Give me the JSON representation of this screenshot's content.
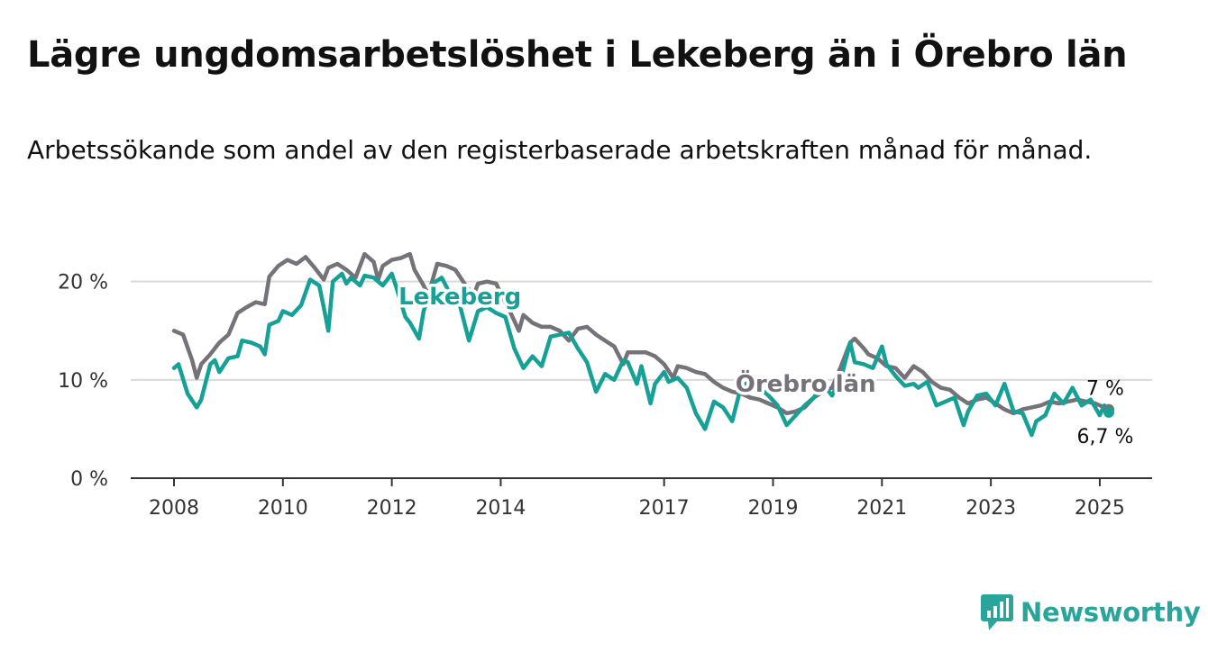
{
  "title": "Lägre ungdomsarbetslöshet i Lekeberg än i Örebro län",
  "subtitle": "Arbetssökande som andel av den registerbaserade arbetskraften månad för månad.",
  "brand": {
    "name": "Newsworthy",
    "icon": "newsworthy-logo-icon",
    "color": "#2aa59b"
  },
  "chart_data": {
    "type": "line",
    "title": "Lägre ungdomsarbetslöshet i Lekeberg än i Örebro län",
    "subtitle": "Arbetssökande som andel av den registerbaserade arbetskraften månad för månad.",
    "xlabel": "",
    "ylabel": "",
    "x_ticks": [
      "2008",
      "2010",
      "2012",
      "2014",
      "2017",
      "2019",
      "2021",
      "2023",
      "2025"
    ],
    "x_range": [
      "2008-01",
      "2025-03"
    ],
    "y_ticks": [
      {
        "value": 0,
        "label": "0 %"
      },
      {
        "value": 10,
        "label": "10 %"
      },
      {
        "value": 20,
        "label": "20 %"
      }
    ],
    "ylim": [
      0,
      24
    ],
    "grid": true,
    "legend": "inline labels",
    "series": [
      {
        "name": "Örebro län",
        "color": "#767279",
        "end_label": "7 %",
        "points": [
          [
            "2008-01",
            15.0
          ],
          [
            "2008-03",
            14.6
          ],
          [
            "2008-05",
            12.0
          ],
          [
            "2008-06",
            10.2
          ],
          [
            "2008-07",
            11.6
          ],
          [
            "2008-09",
            12.6
          ],
          [
            "2008-11",
            13.8
          ],
          [
            "2009-01",
            14.6
          ],
          [
            "2009-03",
            16.8
          ],
          [
            "2009-05",
            17.4
          ],
          [
            "2009-07",
            17.9
          ],
          [
            "2009-09",
            17.7
          ],
          [
            "2009-10",
            20.5
          ],
          [
            "2009-12",
            21.6
          ],
          [
            "2010-02",
            22.2
          ],
          [
            "2010-04",
            21.8
          ],
          [
            "2010-06",
            22.5
          ],
          [
            "2010-08",
            21.4
          ],
          [
            "2010-10",
            20.2
          ],
          [
            "2010-11",
            21.4
          ],
          [
            "2011-01",
            21.8
          ],
          [
            "2011-03",
            21.2
          ],
          [
            "2011-05",
            20.4
          ],
          [
            "2011-07",
            22.8
          ],
          [
            "2011-09",
            22.0
          ],
          [
            "2011-10",
            20.2
          ],
          [
            "2011-11",
            21.6
          ],
          [
            "2012-01",
            22.2
          ],
          [
            "2012-03",
            22.4
          ],
          [
            "2012-05",
            22.8
          ],
          [
            "2012-06",
            21.2
          ],
          [
            "2012-08",
            19.6
          ],
          [
            "2012-09",
            18.6
          ],
          [
            "2012-10",
            20.2
          ],
          [
            "2012-11",
            21.8
          ],
          [
            "2013-01",
            21.6
          ],
          [
            "2013-03",
            21.2
          ],
          [
            "2013-05",
            19.8
          ],
          [
            "2013-07",
            18.6
          ],
          [
            "2013-08",
            19.8
          ],
          [
            "2013-10",
            20.0
          ],
          [
            "2013-12",
            19.8
          ],
          [
            "2014-01",
            18.8
          ],
          [
            "2014-03",
            17.0
          ],
          [
            "2014-05",
            15.0
          ],
          [
            "2014-06",
            16.6
          ],
          [
            "2014-08",
            15.8
          ],
          [
            "2014-10",
            15.4
          ],
          [
            "2014-12",
            15.4
          ],
          [
            "2015-02",
            15.0
          ],
          [
            "2015-04",
            14.0
          ],
          [
            "2015-06",
            15.2
          ],
          [
            "2015-08",
            15.4
          ],
          [
            "2015-10",
            14.6
          ],
          [
            "2015-12",
            14.0
          ],
          [
            "2016-02",
            13.4
          ],
          [
            "2016-04",
            11.6
          ],
          [
            "2016-05",
            12.8
          ],
          [
            "2016-07",
            12.8
          ],
          [
            "2016-09",
            12.8
          ],
          [
            "2016-11",
            12.4
          ],
          [
            "2017-01",
            11.6
          ],
          [
            "2017-03",
            10.2
          ],
          [
            "2017-04",
            11.4
          ],
          [
            "2017-06",
            11.2
          ],
          [
            "2017-08",
            10.8
          ],
          [
            "2017-10",
            10.6
          ],
          [
            "2017-12",
            9.8
          ],
          [
            "2018-02",
            9.2
          ],
          [
            "2018-04",
            8.8
          ],
          [
            "2018-06",
            8.6
          ],
          [
            "2018-08",
            8.2
          ],
          [
            "2018-10",
            8.0
          ],
          [
            "2018-12",
            7.6
          ],
          [
            "2019-02",
            7.2
          ],
          [
            "2019-04",
            6.6
          ],
          [
            "2019-06",
            6.8
          ],
          [
            "2019-08",
            7.2
          ],
          [
            "2019-10",
            8.2
          ],
          [
            "2019-12",
            8.8
          ],
          [
            "2020-02",
            9.2
          ],
          [
            "2020-04",
            11.4
          ],
          [
            "2020-06",
            13.8
          ],
          [
            "2020-07",
            14.2
          ],
          [
            "2020-09",
            13.2
          ],
          [
            "2020-10",
            12.6
          ],
          [
            "2020-12",
            12.2
          ],
          [
            "2021-02",
            11.4
          ],
          [
            "2021-04",
            11.2
          ],
          [
            "2021-06",
            10.2
          ],
          [
            "2021-08",
            11.4
          ],
          [
            "2021-10",
            10.8
          ],
          [
            "2021-12",
            9.8
          ],
          [
            "2022-02",
            9.2
          ],
          [
            "2022-04",
            9.0
          ],
          [
            "2022-06",
            8.2
          ],
          [
            "2022-08",
            7.6
          ],
          [
            "2022-10",
            8.0
          ],
          [
            "2022-12",
            8.2
          ],
          [
            "2023-02",
            7.6
          ],
          [
            "2023-04",
            7.0
          ],
          [
            "2023-06",
            6.6
          ],
          [
            "2023-08",
            7.0
          ],
          [
            "2023-10",
            7.2
          ],
          [
            "2023-12",
            7.4
          ],
          [
            "2024-02",
            7.8
          ],
          [
            "2024-04",
            7.6
          ],
          [
            "2024-06",
            7.8
          ],
          [
            "2024-08",
            8.0
          ],
          [
            "2024-10",
            7.8
          ],
          [
            "2024-12",
            7.6
          ],
          [
            "2025-03",
            7.0
          ]
        ]
      },
      {
        "name": "Lekeberg",
        "color": "#16a096",
        "end_label": "6,7 %",
        "points": [
          [
            "2008-01",
            11.2
          ],
          [
            "2008-02",
            11.6
          ],
          [
            "2008-04",
            8.6
          ],
          [
            "2008-06",
            7.2
          ],
          [
            "2008-07",
            8.0
          ],
          [
            "2008-09",
            11.6
          ],
          [
            "2008-10",
            12.0
          ],
          [
            "2008-11",
            10.8
          ],
          [
            "2009-01",
            12.2
          ],
          [
            "2009-03",
            12.4
          ],
          [
            "2009-04",
            14.0
          ],
          [
            "2009-06",
            13.8
          ],
          [
            "2009-08",
            13.4
          ],
          [
            "2009-09",
            12.6
          ],
          [
            "2009-10",
            15.6
          ],
          [
            "2009-12",
            16.0
          ],
          [
            "2010-01",
            17.0
          ],
          [
            "2010-03",
            16.6
          ],
          [
            "2010-05",
            17.6
          ],
          [
            "2010-07",
            20.2
          ],
          [
            "2010-09",
            19.6
          ],
          [
            "2010-10",
            17.4
          ],
          [
            "2010-11",
            15.0
          ],
          [
            "2010-12",
            20.0
          ],
          [
            "2011-02",
            20.8
          ],
          [
            "2011-03",
            19.8
          ],
          [
            "2011-04",
            20.4
          ],
          [
            "2011-06",
            19.6
          ],
          [
            "2011-07",
            20.6
          ],
          [
            "2011-09",
            20.4
          ],
          [
            "2011-11",
            19.6
          ],
          [
            "2012-01",
            20.8
          ],
          [
            "2012-02",
            19.4
          ],
          [
            "2012-04",
            16.4
          ],
          [
            "2012-05",
            15.8
          ],
          [
            "2012-07",
            14.2
          ],
          [
            "2012-08",
            17.0
          ],
          [
            "2012-10",
            19.8
          ],
          [
            "2012-12",
            20.4
          ],
          [
            "2013-02",
            18.6
          ],
          [
            "2013-04",
            17.6
          ],
          [
            "2013-06",
            14.0
          ],
          [
            "2013-08",
            17.0
          ],
          [
            "2013-10",
            17.4
          ],
          [
            "2013-12",
            16.8
          ],
          [
            "2014-02",
            16.4
          ],
          [
            "2014-04",
            13.2
          ],
          [
            "2014-06",
            11.2
          ],
          [
            "2014-08",
            12.4
          ],
          [
            "2014-10",
            11.4
          ],
          [
            "2014-12",
            14.4
          ],
          [
            "2015-02",
            14.6
          ],
          [
            "2015-04",
            14.8
          ],
          [
            "2015-06",
            13.2
          ],
          [
            "2015-08",
            11.8
          ],
          [
            "2015-10",
            8.8
          ],
          [
            "2015-12",
            10.6
          ],
          [
            "2016-02",
            10.0
          ],
          [
            "2016-04",
            12.0
          ],
          [
            "2016-05",
            11.8
          ],
          [
            "2016-07",
            9.6
          ],
          [
            "2016-08",
            11.4
          ],
          [
            "2016-10",
            7.6
          ],
          [
            "2016-11",
            9.6
          ],
          [
            "2017-01",
            10.8
          ],
          [
            "2017-02",
            9.8
          ],
          [
            "2017-04",
            10.2
          ],
          [
            "2017-06",
            9.2
          ],
          [
            "2017-08",
            6.6
          ],
          [
            "2017-10",
            5.0
          ],
          [
            "2017-12",
            7.8
          ],
          [
            "2018-02",
            7.2
          ],
          [
            "2018-04",
            5.8
          ],
          [
            "2018-06",
            9.4
          ],
          [
            "2018-08",
            9.8
          ],
          [
            "2018-10",
            9.2
          ],
          [
            "2018-12",
            8.4
          ],
          [
            "2019-02",
            7.4
          ],
          [
            "2019-04",
            5.4
          ],
          [
            "2019-06",
            6.4
          ],
          [
            "2019-08",
            7.4
          ],
          [
            "2019-10",
            8.2
          ],
          [
            "2019-12",
            9.6
          ],
          [
            "2020-02",
            8.4
          ],
          [
            "2020-04",
            10.2
          ],
          [
            "2020-06",
            13.8
          ],
          [
            "2020-07",
            11.8
          ],
          [
            "2020-09",
            11.6
          ],
          [
            "2020-11",
            11.2
          ],
          [
            "2021-01",
            13.4
          ],
          [
            "2021-02",
            11.6
          ],
          [
            "2021-04",
            10.4
          ],
          [
            "2021-06",
            9.4
          ],
          [
            "2021-08",
            9.6
          ],
          [
            "2021-09",
            9.2
          ],
          [
            "2021-11",
            9.8
          ],
          [
            "2022-01",
            7.4
          ],
          [
            "2022-03",
            7.8
          ],
          [
            "2022-05",
            8.2
          ],
          [
            "2022-07",
            5.4
          ],
          [
            "2022-08",
            6.8
          ],
          [
            "2022-10",
            8.4
          ],
          [
            "2022-12",
            8.6
          ],
          [
            "2023-02",
            7.4
          ],
          [
            "2023-04",
            9.6
          ],
          [
            "2023-06",
            6.8
          ],
          [
            "2023-08",
            6.6
          ],
          [
            "2023-10",
            4.4
          ],
          [
            "2023-11",
            5.8
          ],
          [
            "2024-01",
            6.4
          ],
          [
            "2024-03",
            8.6
          ],
          [
            "2024-05",
            7.6
          ],
          [
            "2024-07",
            9.2
          ],
          [
            "2024-09",
            7.4
          ],
          [
            "2024-11",
            8.0
          ],
          [
            "2025-01",
            6.4
          ],
          [
            "2025-02",
            7.4
          ],
          [
            "2025-03",
            6.7
          ]
        ]
      }
    ]
  }
}
